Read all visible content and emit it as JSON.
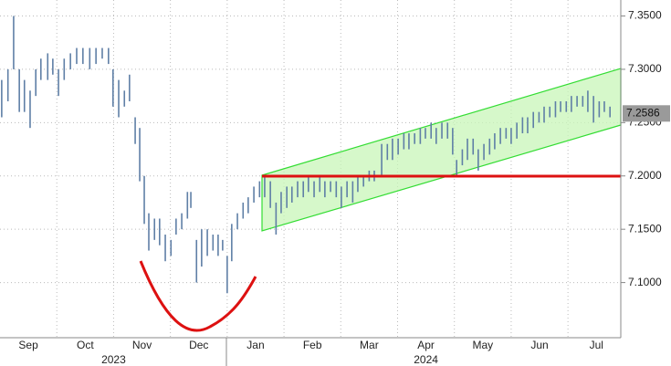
{
  "chart_data": {
    "type": "range-bar",
    "x": [
      9.03,
      9.14,
      9.24,
      9.34,
      9.43,
      9.53,
      9.63,
      9.72,
      9.84,
      9.93,
      10.03,
      10.13,
      10.24,
      10.35,
      10.46,
      10.58,
      10.69,
      10.8,
      10.91,
      10.99,
      11.09,
      11.19,
      11.28,
      11.38,
      11.46,
      11.54,
      11.62,
      11.72,
      11.81,
      11.91,
      12.01,
      12.1,
      12.2,
      12.3,
      12.36,
      12.46,
      12.55,
      12.65,
      12.75,
      12.84,
      12.92,
      13.0,
      13.08,
      13.18,
      13.28,
      13.37,
      13.47,
      13.57,
      13.66,
      13.76,
      13.86,
      13.95,
      14.05,
      14.14,
      14.24,
      14.34,
      14.43,
      14.53,
      14.63,
      14.72,
      14.82,
      14.92,
      15.01,
      15.11,
      15.21,
      15.3,
      15.4,
      15.5,
      15.59,
      15.72,
      15.82,
      15.91,
      16.01,
      16.11,
      16.2,
      16.3,
      16.4,
      16.49,
      16.59,
      16.68,
      16.78,
      16.88,
      16.97,
      17.04,
      17.14,
      17.23,
      17.33,
      17.42,
      17.52,
      17.62,
      17.71,
      17.81,
      17.91,
      18.0,
      18.1,
      18.2,
      18.29,
      18.39,
      18.49,
      18.58,
      18.68,
      18.78,
      18.87,
      18.97,
      19.06,
      19.16,
      19.26,
      19.35,
      19.45,
      19.55,
      19.64,
      19.74
    ],
    "low": [
      7.255,
      7.27,
      7.3,
      7.26,
      7.26,
      7.245,
      7.275,
      7.29,
      7.29,
      7.295,
      7.275,
      7.29,
      7.3,
      7.305,
      7.305,
      7.3,
      7.305,
      7.31,
      7.305,
      7.265,
      7.255,
      7.265,
      7.27,
      7.23,
      7.195,
      7.155,
      7.13,
      7.14,
      7.135,
      7.12,
      7.125,
      7.145,
      7.15,
      7.16,
      7.17,
      7.1,
      7.115,
      7.125,
      7.13,
      7.125,
      7.13,
      7.09,
      7.12,
      7.15,
      7.16,
      7.165,
      7.175,
      7.18,
      7.18,
      7.17,
      7.145,
      7.165,
      7.17,
      7.175,
      7.18,
      7.18,
      7.185,
      7.18,
      7.185,
      7.18,
      7.185,
      7.18,
      7.17,
      7.18,
      7.175,
      7.185,
      7.19,
      7.195,
      7.195,
      7.2,
      7.215,
      7.215,
      7.22,
      7.225,
      7.225,
      7.23,
      7.23,
      7.235,
      7.235,
      7.23,
      7.235,
      7.235,
      7.22,
      7.2,
      7.21,
      7.215,
      7.22,
      7.205,
      7.215,
      7.22,
      7.225,
      7.23,
      7.235,
      7.23,
      7.235,
      7.24,
      7.24,
      7.245,
      7.25,
      7.25,
      7.255,
      7.255,
      7.26,
      7.26,
      7.26,
      7.265,
      7.265,
      7.26,
      7.25,
      7.255,
      7.26,
      7.255
    ],
    "high": [
      7.29,
      7.3,
      7.35,
      7.3,
      7.29,
      7.28,
      7.3,
      7.31,
      7.315,
      7.31,
      7.3,
      7.31,
      7.315,
      7.32,
      7.32,
      7.32,
      7.32,
      7.32,
      7.32,
      7.3,
      7.29,
      7.28,
      7.295,
      7.255,
      7.245,
      7.2,
      7.165,
      7.16,
      7.16,
      7.145,
      7.14,
      7.16,
      7.165,
      7.185,
      7.185,
      7.14,
      7.15,
      7.15,
      7.145,
      7.145,
      7.14,
      7.125,
      7.155,
      7.165,
      7.175,
      7.18,
      7.19,
      7.195,
      7.2,
      7.195,
      7.175,
      7.185,
      7.19,
      7.19,
      7.195,
      7.195,
      7.2,
      7.195,
      7.2,
      7.195,
      7.195,
      7.195,
      7.19,
      7.195,
      7.195,
      7.2,
      7.2,
      7.205,
      7.205,
      7.23,
      7.23,
      7.235,
      7.235,
      7.24,
      7.24,
      7.24,
      7.245,
      7.245,
      7.25,
      7.245,
      7.25,
      7.25,
      7.245,
      7.215,
      7.225,
      7.235,
      7.235,
      7.225,
      7.23,
      7.235,
      7.24,
      7.245,
      7.245,
      7.245,
      7.25,
      7.255,
      7.255,
      7.26,
      7.26,
      7.265,
      7.265,
      7.27,
      7.27,
      7.27,
      7.275,
      7.275,
      7.275,
      7.28,
      7.275,
      7.27,
      7.27,
      7.265
    ],
    "color": "#5f7fa6",
    "xlim": [
      9,
      19.93
    ],
    "ylim": [
      7.05,
      7.365
    ],
    "xticks": [
      {
        "value": 9.5,
        "label": "Sep"
      },
      {
        "value": 10.5,
        "label": "Oct"
      },
      {
        "value": 11.5,
        "label": "Nov"
      },
      {
        "value": 12.5,
        "label": "Dec"
      },
      {
        "value": 13.5,
        "label": "Jan"
      },
      {
        "value": 14.5,
        "label": "Feb"
      },
      {
        "value": 15.5,
        "label": "Mar"
      },
      {
        "value": 16.5,
        "label": "Apr"
      },
      {
        "value": 17.5,
        "label": "May"
      },
      {
        "value": 18.5,
        "label": "Jun"
      },
      {
        "value": 19.5,
        "label": "Jul"
      }
    ],
    "xgrid": [
      10,
      11,
      12,
      13,
      14,
      15,
      16,
      17,
      18,
      19
    ],
    "years": [
      {
        "value": 11,
        "label": "2023"
      },
      {
        "value": 16.5,
        "label": "2024"
      }
    ],
    "yticks": [
      {
        "value": 7.1,
        "label": "7.1000"
      },
      {
        "value": 7.15,
        "label": "7.1500"
      },
      {
        "value": 7.2,
        "label": "7.2000"
      },
      {
        "value": 7.25,
        "label": "7.2500"
      },
      {
        "value": 7.3,
        "label": "7.3000"
      },
      {
        "value": 7.35,
        "label": "7.3500"
      }
    ],
    "last_value": {
      "value": 7.2586,
      "label": "7.2586"
    },
    "grid": true
  }
}
